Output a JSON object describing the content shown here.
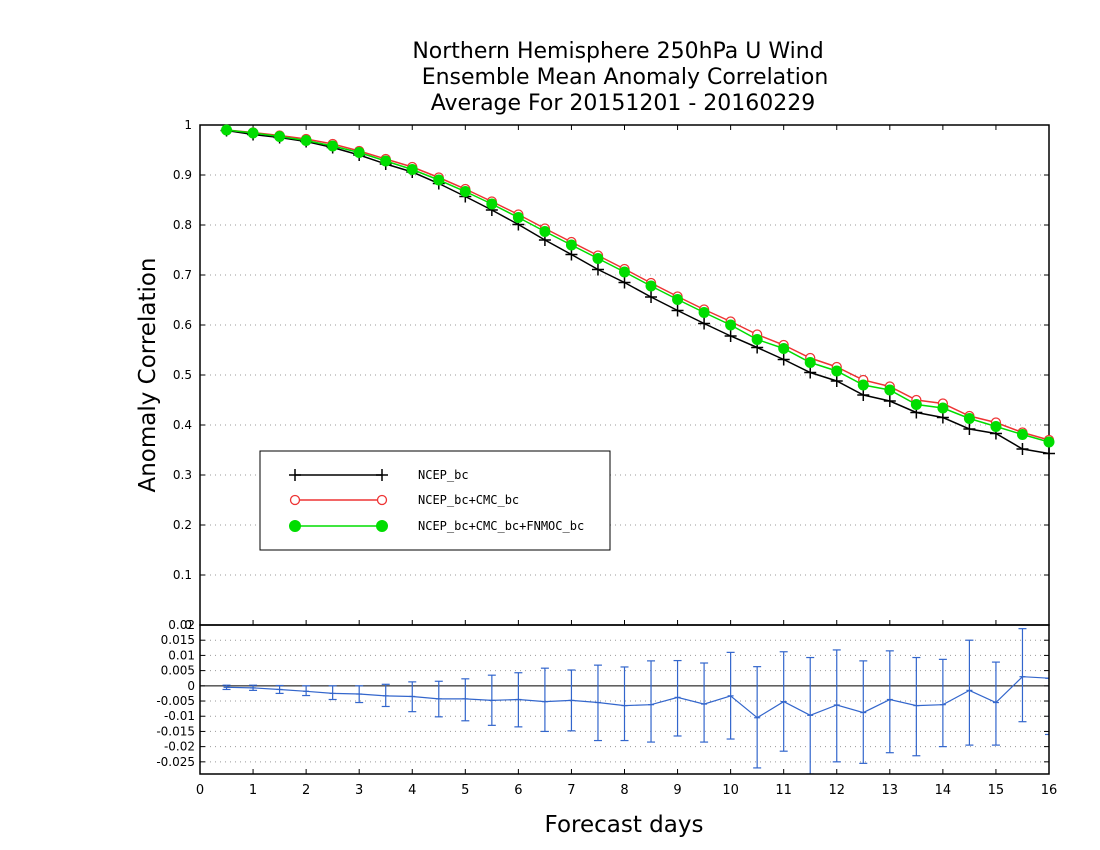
{
  "chart_data": [
    {
      "type": "line",
      "title": [
        "Northern Hemisphere 250hPa U Wind",
        "Ensemble Mean Anomaly Correlation",
        "Average For 20151201 - 20160229"
      ],
      "ylabel": "Anomaly Correlation",
      "xlabel": "Forecast days",
      "xlim": [
        0,
        16
      ],
      "ylim": [
        0,
        1
      ],
      "yticks": [
        "0",
        "0.1",
        "0.2",
        "0.3",
        "0.4",
        "0.5",
        "0.6",
        "0.7",
        "0.8",
        "0.9",
        "1"
      ],
      "grid": true,
      "legend_position": "lower-left",
      "x": [
        0.5,
        1,
        1.5,
        2,
        2.5,
        3,
        3.5,
        4,
        4.5,
        5,
        5.5,
        6,
        6.5,
        7,
        7.5,
        8,
        8.5,
        9,
        9.5,
        10,
        10.5,
        11,
        11.5,
        12,
        12.5,
        13,
        13.5,
        14,
        14.5,
        15,
        15.5,
        16
      ],
      "series": [
        {
          "name": "NCEP_bc",
          "color": "#000000",
          "marker": "plus",
          "values": [
            0.989,
            0.981,
            0.975,
            0.967,
            0.955,
            0.94,
            0.922,
            0.906,
            0.883,
            0.857,
            0.83,
            0.801,
            0.77,
            0.741,
            0.711,
            0.685,
            0.656,
            0.629,
            0.603,
            0.578,
            0.555,
            0.531,
            0.505,
            0.488,
            0.46,
            0.448,
            0.425,
            0.415,
            0.392,
            0.383,
            0.352,
            0.343
          ]
        },
        {
          "name": "NCEP_bc+CMC_bc",
          "color": "#ee3333",
          "marker": "open-circle",
          "values": [
            0.99,
            0.985,
            0.979,
            0.972,
            0.962,
            0.948,
            0.932,
            0.916,
            0.895,
            0.872,
            0.847,
            0.821,
            0.793,
            0.766,
            0.739,
            0.712,
            0.684,
            0.657,
            0.631,
            0.607,
            0.581,
            0.56,
            0.534,
            0.516,
            0.49,
            0.477,
            0.45,
            0.443,
            0.418,
            0.405,
            0.385,
            0.37
          ]
        },
        {
          "name": "NCEP_bc+CMC_bc+FNMOC_bc",
          "color": "#00dd00",
          "marker": "filled-circle",
          "values": [
            0.99,
            0.984,
            0.977,
            0.969,
            0.958,
            0.945,
            0.928,
            0.911,
            0.89,
            0.867,
            0.842,
            0.815,
            0.787,
            0.76,
            0.733,
            0.706,
            0.678,
            0.651,
            0.625,
            0.6,
            0.571,
            0.553,
            0.525,
            0.508,
            0.48,
            0.47,
            0.441,
            0.434,
            0.413,
            0.397,
            0.381,
            0.366
          ]
        }
      ]
    },
    {
      "type": "line",
      "subtype": "difference-with-error-bars",
      "xlim": [
        0,
        16
      ],
      "ylim": [
        -0.029,
        0.02
      ],
      "yticks": [
        "-0.025",
        "-0.02",
        "-0.015",
        "-0.01",
        "-0.005",
        "0",
        "0.005",
        "0.01",
        "0.015",
        "0.02"
      ],
      "xticks": [
        "0",
        "1",
        "2",
        "3",
        "4",
        "5",
        "6",
        "7",
        "8",
        "9",
        "10",
        "11",
        "12",
        "13",
        "14",
        "15",
        "16"
      ],
      "grid": true,
      "zero_line": true,
      "color": "#3366cc",
      "x": [
        0.5,
        1,
        1.5,
        2,
        2.5,
        3,
        3.5,
        4,
        4.5,
        5,
        5.5,
        6,
        6.5,
        7,
        7.5,
        8,
        8.5,
        9,
        9.5,
        10,
        10.5,
        11,
        11.5,
        12,
        12.5,
        13,
        13.5,
        14,
        14.5,
        15,
        15.5,
        16
      ],
      "values": [
        -0.0005,
        -0.0007,
        -0.0012,
        -0.0018,
        -0.0025,
        -0.0027,
        -0.0033,
        -0.0035,
        -0.0043,
        -0.0043,
        -0.0048,
        -0.0045,
        -0.0052,
        -0.0048,
        -0.0055,
        -0.0065,
        -0.0062,
        -0.0038,
        -0.006,
        -0.0033,
        -0.0105,
        -0.0052,
        -0.0097,
        -0.0063,
        -0.0088,
        -0.0045,
        -0.0065,
        -0.0062,
        -0.0015,
        -0.0055,
        0.003,
        0.0025
      ],
      "err_lo": [
        -0.0012,
        -0.0015,
        -0.0025,
        -0.0032,
        -0.0045,
        -0.0055,
        -0.0068,
        -0.0085,
        -0.0102,
        -0.0115,
        -0.013,
        -0.0135,
        -0.015,
        -0.0148,
        -0.018,
        -0.018,
        -0.0185,
        -0.0165,
        -0.0185,
        -0.0175,
        -0.027,
        -0.0215,
        -0.029,
        -0.025,
        -0.0255,
        -0.022,
        -0.023,
        -0.02,
        -0.0195,
        -0.0195,
        -0.0118,
        -0.016
      ],
      "err_hi": [
        0.0002,
        0.0002,
        0.0001,
        0.0,
        0.0,
        0.0,
        0.0005,
        0.0013,
        0.0015,
        0.0023,
        0.0035,
        0.0043,
        0.0058,
        0.0052,
        0.0068,
        0.0062,
        0.0082,
        0.0083,
        0.0075,
        0.011,
        0.0063,
        0.0112,
        0.0093,
        0.0118,
        0.0082,
        0.0115,
        0.0093,
        0.0087,
        0.015,
        0.0078,
        0.0188,
        0.0025
      ]
    }
  ]
}
